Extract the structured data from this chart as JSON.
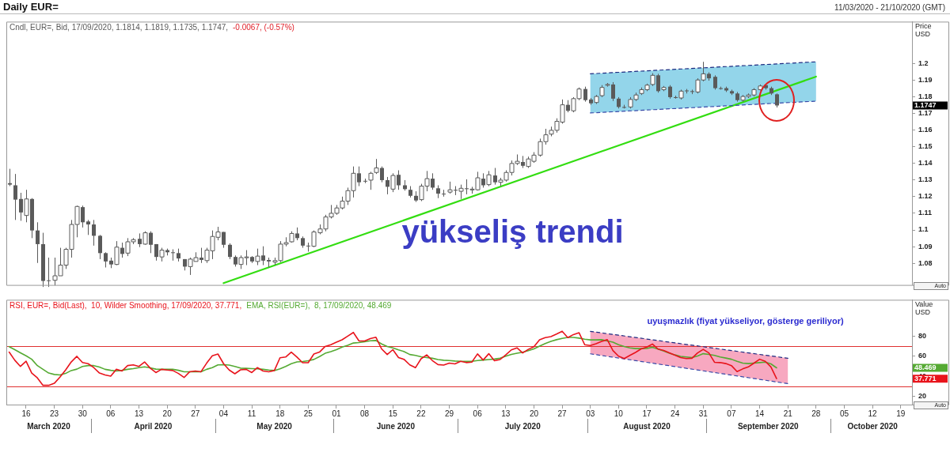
{
  "chart_data": [
    {
      "type": "candlestick",
      "title": "Daily EUR=",
      "subtitle": "11/03/2020 - 21/10/2020 (GMT)",
      "ylabel": "Price USD",
      "categories": [
        null,
        null,
        null,
        "16",
        null,
        null,
        null,
        null,
        "23",
        null,
        null,
        null,
        null,
        "30",
        null,
        null,
        null,
        null,
        "06",
        null,
        null,
        null,
        null,
        "13",
        null,
        null,
        null,
        null,
        "20",
        null,
        null,
        null,
        null,
        "27",
        null,
        null,
        null,
        null,
        "04",
        null,
        null,
        null,
        null,
        "11",
        null,
        null,
        null,
        null,
        "18",
        null,
        null,
        null,
        null,
        "25",
        null,
        null,
        null,
        null,
        "01",
        null,
        null,
        null,
        null,
        "08",
        null,
        null,
        null,
        null,
        "15",
        null,
        null,
        null,
        null,
        "22",
        null,
        null,
        null,
        null,
        "29",
        null,
        null,
        null,
        null,
        "06",
        null,
        null,
        null,
        null,
        "13",
        null,
        null,
        null,
        null,
        "20",
        null,
        null,
        null,
        null,
        "27",
        null,
        null,
        null,
        null,
        "03",
        null,
        null,
        null,
        null,
        "10",
        null,
        null,
        null,
        null,
        "17",
        null,
        null,
        null,
        null,
        "24",
        null,
        null,
        null,
        null,
        "31",
        null,
        null,
        null,
        null,
        "07",
        null,
        null,
        null,
        null,
        "14",
        null,
        null,
        null,
        null,
        "21",
        null,
        null,
        null,
        null,
        "28",
        null,
        null,
        null,
        null,
        "05",
        null,
        null,
        null,
        null,
        "12",
        null,
        null,
        null,
        null,
        "19",
        null,
        null
      ],
      "ylim": [
        1.067,
        1.225
      ],
      "yticks": [
        1.08,
        1.09,
        1.1,
        1.11,
        1.12,
        1.13,
        1.14,
        1.15,
        1.16,
        1.17,
        1.18,
        1.19,
        1.2
      ],
      "tick_labels": "y",
      "legend": "top left",
      "marker": "none",
      "grid": false,
      "series": [
        {
          "name": "Cndl, EUR=, Bid, 17/09/2020, 1.1814, 1.1819, 1.1735, 1.1747,",
          "color": "#5a5a5a",
          "colors": [
            "#5a5a5a",
            "#5a5a5a",
            "#5a5a5a",
            "#ffffff",
            "#5a5a5a",
            "#5a5a5a",
            "#5a5a5a",
            "#5a5a5a",
            "#ffffff",
            "#ffffff",
            "#ffffff",
            "#ffffff",
            "#ffffff",
            "#5a5a5a",
            "#5a5a5a",
            "#5a5a5a",
            "#5a5a5a",
            "#5a5a5a",
            "#5a5a5a",
            "#ffffff",
            "#5a5a5a",
            "#ffffff",
            "#ffffff",
            "#5a5a5a",
            "#ffffff",
            "#5a5a5a",
            "#5a5a5a",
            "#ffffff",
            "#5a5a5a",
            "#5a5a5a",
            "#5a5a5a",
            "#5a5a5a",
            "#ffffff",
            "#ffffff",
            "#5a5a5a",
            "#ffffff",
            "#ffffff",
            "#ffffff",
            "#5a5a5a",
            "#5a5a5a",
            "#5a5a5a",
            "#ffffff",
            "#ffffff",
            "#5a5a5a",
            "#ffffff",
            "#5a5a5a",
            "#5a5a5a",
            "#ffffff",
            "#ffffff",
            "#ffffff",
            "#ffffff",
            "#5a5a5a",
            "#5a5a5a",
            "#5a5a5a",
            "#ffffff",
            "#ffffff",
            "#ffffff",
            "#ffffff",
            "#ffffff",
            "#ffffff",
            "#ffffff",
            "#ffffff",
            "#5a5a5a",
            "#5a5a5a",
            "#ffffff",
            "#ffffff",
            "#5a5a5a",
            "#5a5a5a",
            "#ffffff",
            "#5a5a5a",
            "#5a5a5a",
            "#5a5a5a",
            "#5a5a5a",
            "#ffffff",
            "#ffffff",
            "#5a5a5a",
            "#5a5a5a",
            "#5a5a5a",
            "#ffffff",
            "#5a5a5a",
            "#ffffff",
            "#5a5a5a",
            "#ffffff",
            "#ffffff",
            "#5a5a5a",
            "#ffffff",
            "#5a5a5a",
            "#ffffff",
            "#ffffff",
            "#ffffff",
            "#ffffff",
            "#5a5a5a",
            "#ffffff",
            "#ffffff",
            "#ffffff",
            "#ffffff",
            "#ffffff",
            "#ffffff",
            "#ffffff",
            "#5a5a5a",
            "#ffffff",
            "#ffffff",
            "#5a5a5a",
            "#5a5a5a",
            "#ffffff",
            "#ffffff",
            "#ffffff",
            "#5a5a5a",
            "#5a5a5a",
            "#5a5a5a",
            "#ffffff",
            "#ffffff",
            "#ffffff",
            "#ffffff",
            "#ffffff",
            "#5a5a5a",
            "#ffffff",
            "#5a5a5a",
            "#5a5a5a",
            "#ffffff",
            "#5a5a5a",
            "#5a5a5a",
            "#ffffff",
            "#ffffff",
            "#5a5a5a",
            "#5a5a5a",
            "#5a5a5a",
            "#5a5a5a",
            "#5a5a5a",
            "#5a5a5a",
            "#ffffff",
            "#ffffff",
            "#ffffff",
            "#ffffff",
            "#5a5a5a",
            "#5a5a5a",
            "#5a5a5a",
            null,
            null,
            null,
            null,
            null,
            null,
            null,
            null,
            null,
            null,
            null,
            null,
            null,
            null,
            null,
            null,
            null,
            null,
            null,
            null,
            null,
            null,
            null,
            null
          ],
          "ohlc": [
            [
              1.1281,
              1.1367,
              1.1263,
              1.1272
            ],
            [
              1.1268,
              1.1336,
              1.106,
              1.1182
            ],
            [
              1.1186,
              1.1223,
              1.1055,
              1.1105
            ],
            [
              1.1087,
              1.1241,
              1.1046,
              1.1186
            ],
            [
              1.1186,
              1.1191,
              1.0951,
              1.0997
            ],
            [
              1.0997,
              1.1046,
              1.0802,
              1.0915
            ],
            [
              1.0915,
              1.0983,
              1.0658,
              1.0694
            ],
            [
              1.0698,
              1.0834,
              1.0658,
              1.0694
            ],
            [
              1.0698,
              1.0834,
              1.0667,
              1.0725
            ],
            [
              1.0725,
              1.0893,
              1.0725,
              1.0789
            ],
            [
              1.0789,
              1.0893,
              1.0766,
              1.0884
            ],
            [
              1.0884,
              1.106,
              1.0834,
              1.1033
            ],
            [
              1.1033,
              1.1146,
              1.0956,
              1.1141
            ],
            [
              1.1137,
              1.1146,
              1.1015,
              1.1046
            ],
            [
              1.1051,
              1.106,
              1.097,
              1.1033
            ],
            [
              1.1033,
              1.106,
              1.0906,
              1.0965
            ],
            [
              1.0965,
              1.097,
              1.0825,
              1.0861
            ],
            [
              1.0861,
              1.0866,
              1.0775,
              1.0811
            ],
            [
              1.0816,
              1.0834,
              1.0771,
              1.0793
            ],
            [
              1.0793,
              1.0933,
              1.0789,
              1.0897
            ],
            [
              1.0893,
              1.0924,
              1.0834,
              1.0856
            ],
            [
              1.0861,
              1.0951,
              1.0843,
              1.0929
            ],
            [
              1.0929,
              1.0951,
              1.0915,
              1.0942
            ],
            [
              1.0947,
              1.0979,
              1.0897,
              1.0915
            ],
            [
              1.0915,
              1.0992,
              1.0911,
              1.0983
            ],
            [
              1.0983,
              1.0992,
              1.0861,
              1.0911
            ],
            [
              1.0915,
              1.0915,
              1.0816,
              1.0838
            ],
            [
              1.0838,
              1.0893,
              1.0811,
              1.0879
            ],
            [
              1.0879,
              1.0888,
              1.0847,
              1.0866
            ],
            [
              1.0866,
              1.0884,
              1.0816,
              1.0861
            ],
            [
              1.0861,
              1.0888,
              1.0811,
              1.0829
            ],
            [
              1.0825,
              1.0825,
              1.0757,
              1.078
            ],
            [
              1.078,
              1.0834,
              1.073,
              1.0825
            ],
            [
              1.0811,
              1.0866,
              1.0811,
              1.0834
            ],
            [
              1.0834,
              1.0893,
              1.0802,
              1.082
            ],
            [
              1.0816,
              1.0893,
              1.0802,
              1.0879
            ],
            [
              1.0875,
              1.0997,
              1.0825,
              1.0961
            ],
            [
              1.0956,
              1.1019,
              1.0938,
              1.0988
            ],
            [
              1.0988,
              1.0988,
              1.0893,
              1.0911
            ],
            [
              1.0911,
              1.092,
              1.0825,
              1.0838
            ],
            [
              1.0838,
              1.0847,
              1.078,
              1.0793
            ],
            [
              1.0793,
              1.0847,
              1.0766,
              1.0834
            ],
            [
              1.0834,
              1.0879,
              1.0789,
              1.0838
            ],
            [
              1.0838,
              1.0843,
              1.0802,
              1.0811
            ],
            [
              1.0811,
              1.0888,
              1.0789,
              1.0843
            ],
            [
              1.0847,
              1.0902,
              1.0789,
              1.0816
            ],
            [
              1.082,
              1.0834,
              1.0775,
              1.0811
            ],
            [
              1.0807,
              1.0834,
              1.0789,
              1.0816
            ],
            [
              1.0816,
              1.0933,
              1.0807,
              1.0915
            ],
            [
              1.0915,
              1.0956,
              1.0902,
              1.0924
            ],
            [
              1.0929,
              1.0992,
              1.0924,
              1.0979
            ],
            [
              1.0979,
              1.1015,
              1.0938,
              1.0951
            ],
            [
              1.0951,
              1.0961,
              1.0893,
              1.0906
            ],
            [
              1.0906,
              1.0924,
              1.087,
              1.0906
            ],
            [
              1.0902,
              1.0997,
              1.0897,
              1.0988
            ],
            [
              1.0983,
              1.1033,
              1.0974,
              1.1006
            ],
            [
              1.1006,
              1.1091,
              1.0992,
              1.1078
            ],
            [
              1.1078,
              1.115,
              1.1069,
              1.11
            ],
            [
              1.11,
              1.115,
              1.1091,
              1.1132
            ],
            [
              1.1132,
              1.12,
              1.1123,
              1.1173
            ],
            [
              1.1173,
              1.1254,
              1.115,
              1.1236
            ],
            [
              1.1236,
              1.1381,
              1.1195,
              1.134
            ],
            [
              1.134,
              1.1381,
              1.1263,
              1.1286
            ],
            [
              1.1295,
              1.1308,
              1.1281,
              1.1295
            ],
            [
              1.1299,
              1.1349,
              1.1241,
              1.134
            ],
            [
              1.1345,
              1.1426,
              1.1336,
              1.1372
            ],
            [
              1.1372,
              1.1381,
              1.1286,
              1.1299
            ],
            [
              1.1299,
              1.1318,
              1.1214,
              1.1259
            ],
            [
              1.1245,
              1.134,
              1.1227,
              1.1327
            ],
            [
              1.1331,
              1.1358,
              1.1241,
              1.1268
            ],
            [
              1.1268,
              1.1299,
              1.1236,
              1.1245
            ],
            [
              1.1241,
              1.1263,
              1.1195,
              1.1205
            ],
            [
              1.1205,
              1.1232,
              1.1168,
              1.1177
            ],
            [
              1.1182,
              1.1277,
              1.1173,
              1.1263
            ],
            [
              1.1263,
              1.1354,
              1.1232,
              1.1308
            ],
            [
              1.1308,
              1.134,
              1.1241,
              1.1254
            ],
            [
              1.125,
              1.1268,
              1.1191,
              1.1218
            ],
            [
              1.1218,
              1.1241,
              1.12,
              1.1218
            ],
            [
              1.1227,
              1.129,
              1.1218,
              1.1241
            ],
            [
              1.1241,
              1.1263,
              1.1209,
              1.1236
            ],
            [
              1.1232,
              1.1272,
              1.1186,
              1.125
            ],
            [
              1.125,
              1.1304,
              1.1214,
              1.1245
            ],
            [
              1.1241,
              1.1259,
              1.1218,
              1.1245
            ],
            [
              1.1241,
              1.1349,
              1.1236,
              1.1313
            ],
            [
              1.1308,
              1.134,
              1.1254,
              1.1268
            ],
            [
              1.1272,
              1.1354,
              1.1263,
              1.1331
            ],
            [
              1.1327,
              1.1372,
              1.1272,
              1.1286
            ],
            [
              1.1286,
              1.1313,
              1.1263,
              1.1299
            ],
            [
              1.1299,
              1.1358,
              1.129,
              1.1345
            ],
            [
              1.1345,
              1.1417,
              1.1327,
              1.1399
            ],
            [
              1.1399,
              1.1453,
              1.139,
              1.1412
            ],
            [
              1.1408,
              1.1444,
              1.1372,
              1.1385
            ],
            [
              1.1381,
              1.144,
              1.1372,
              1.1426
            ],
            [
              1.1412,
              1.1467,
              1.1403,
              1.1449
            ],
            [
              1.1449,
              1.1548,
              1.144,
              1.153
            ],
            [
              1.153,
              1.1607,
              1.1512,
              1.1571
            ],
            [
              1.1575,
              1.162,
              1.1562,
              1.1598
            ],
            [
              1.1598,
              1.167,
              1.1584,
              1.1652
            ],
            [
              1.1647,
              1.1783,
              1.1638,
              1.1751
            ],
            [
              1.1751,
              1.1779,
              1.1706,
              1.1715
            ],
            [
              1.1715,
              1.1797,
              1.1706,
              1.1788
            ],
            [
              1.1788,
              1.1855,
              1.1779,
              1.1846
            ],
            [
              1.1846,
              1.186,
              1.177,
              1.1779
            ],
            [
              1.1783,
              1.1792,
              1.1751,
              1.176
            ],
            [
              1.1765,
              1.181,
              1.1756,
              1.1801
            ],
            [
              1.1806,
              1.1869,
              1.1797,
              1.1855
            ],
            [
              1.1869,
              1.1882,
              1.186,
              1.1873
            ],
            [
              1.1873,
              1.1887,
              1.1774,
              1.1788
            ],
            [
              1.1788,
              1.1797,
              1.1729,
              1.1738
            ],
            [
              1.1738,
              1.1751,
              1.1729,
              1.1738
            ],
            [
              1.1738,
              1.1797,
              1.1729,
              1.1783
            ],
            [
              1.1783,
              1.1824,
              1.1774,
              1.181
            ],
            [
              1.1819,
              1.1855,
              1.181,
              1.1842
            ],
            [
              1.1842,
              1.1878,
              1.1833,
              1.1869
            ],
            [
              1.1873,
              1.1941,
              1.1864,
              1.1928
            ],
            [
              1.1928,
              1.1937,
              1.1824,
              1.1833
            ],
            [
              1.1842,
              1.1864,
              1.1833,
              1.1855
            ],
            [
              1.186,
              1.1869,
              1.1788,
              1.1797
            ],
            [
              1.1797,
              1.1806,
              1.1788,
              1.1792
            ],
            [
              1.1792,
              1.1842,
              1.1783,
              1.1833
            ],
            [
              1.1837,
              1.1846,
              1.1819,
              1.1833
            ],
            [
              1.1833,
              1.1842,
              1.1815,
              1.1828
            ],
            [
              1.1828,
              1.191,
              1.1819,
              1.19
            ],
            [
              1.19,
              1.2009,
              1.1892,
              1.1937
            ],
            [
              1.1937,
              1.1946,
              1.1896,
              1.191
            ],
            [
              1.1919,
              1.1928,
              1.1842,
              1.1851
            ],
            [
              1.1851,
              1.186,
              1.1842,
              1.1846
            ],
            [
              1.1851,
              1.186,
              1.1828,
              1.1837
            ],
            [
              1.1833,
              1.1842,
              1.181,
              1.1819
            ],
            [
              1.1819,
              1.1828,
              1.177,
              1.1779
            ],
            [
              1.1779,
              1.181,
              1.177,
              1.1801
            ],
            [
              1.1801,
              1.1819,
              1.1792,
              1.181
            ],
            [
              1.181,
              1.1851,
              1.1801,
              1.1842
            ],
            [
              1.1842,
              1.1873,
              1.1837,
              1.1864
            ],
            [
              1.1869,
              1.1873,
              1.1842,
              1.1851
            ],
            [
              1.1851,
              1.186,
              1.181,
              1.1819
            ],
            [
              1.1814,
              1.1819,
              1.1735,
              1.1747
            ],
            null,
            null,
            null,
            null,
            null,
            null,
            null,
            null,
            null,
            null,
            null,
            null,
            null,
            null,
            null,
            null,
            null,
            null,
            null,
            null,
            null,
            null,
            null,
            null
          ]
        },
        {
          "type": "line",
          "x": [
            "03",
            "28"
          ],
          "values": [
            1.1937,
            1.2009
          ],
          "color": "#1c2a80",
          "line_style": "dashed"
        },
        {
          "type": "line",
          "x": [
            "03",
            "28"
          ],
          "values": [
            1.1702,
            1.1773
          ],
          "color": "#3a4aa8",
          "line_style": "dashed"
        },
        {
          "type": "line",
          "x": [
            "04",
            "28"
          ],
          "values": [
            1.0681,
            1.192
          ],
          "color": "#33dd11"
        }
      ],
      "annotations": [
        "-0.0067, (-0.57%)",
        "yükseliş trendi",
        "1.1747",
        "Auto"
      ]
    },
    {
      "type": "line",
      "ylabel": "Value USD",
      "categories": [
        null,
        null,
        null,
        "16",
        null,
        null,
        null,
        null,
        "23",
        null,
        null,
        null,
        null,
        "30",
        null,
        null,
        null,
        null,
        "06",
        null,
        null,
        null,
        null,
        "13",
        null,
        null,
        null,
        null,
        "20",
        null,
        null,
        null,
        null,
        "27",
        null,
        null,
        null,
        null,
        "04",
        null,
        null,
        null,
        null,
        "11",
        null,
        null,
        null,
        null,
        "18",
        null,
        null,
        null,
        null,
        "25",
        null,
        null,
        null,
        null,
        "01",
        null,
        null,
        null,
        null,
        "08",
        null,
        null,
        null,
        null,
        "15",
        null,
        null,
        null,
        null,
        "22",
        null,
        null,
        null,
        null,
        "29",
        null,
        null,
        null,
        null,
        "06",
        null,
        null,
        null,
        null,
        "13",
        null,
        null,
        null,
        null,
        "20",
        null,
        null,
        null,
        null,
        "27",
        null,
        null,
        null,
        null,
        "03",
        null,
        null,
        null,
        null,
        "10",
        null,
        null,
        null,
        null,
        "17",
        null,
        null,
        null,
        null,
        "24",
        null,
        null,
        null,
        null,
        "31",
        null,
        null,
        null,
        null,
        "07",
        null,
        null,
        null,
        null,
        "14",
        null,
        null,
        null,
        null,
        "21",
        null,
        null,
        null,
        null,
        "28",
        null,
        null,
        null,
        null,
        "05",
        null,
        null,
        null,
        null,
        "12",
        null,
        null,
        null,
        null,
        "19",
        null,
        null
      ],
      "ylim": [
        12,
        116
      ],
      "yticks": [
        20,
        40,
        60,
        80
      ],
      "legend": "top left",
      "marker": "none",
      "grid": false,
      "series": [
        {
          "name": "RSI, EUR=, Bid(Last),  10, Wilder Smoothing, 17/09/2020, 37.771,",
          "color": "#e8141c",
          "values": [
            64.1,
            56.0,
            49.9,
            55.1,
            43.3,
            38.5,
            31.1,
            31.1,
            33.1,
            39.2,
            46.3,
            54.3,
            59.9,
            53.8,
            52.6,
            48.7,
            43.3,
            41.4,
            40.2,
            47.0,
            45.3,
            50.7,
            51.4,
            49.9,
            54.3,
            48.2,
            43.8,
            47.0,
            46.3,
            45.8,
            42.9,
            38.9,
            44.6,
            45.3,
            44.6,
            53.1,
            60.4,
            62.2,
            52.6,
            46.3,
            42.6,
            46.5,
            47.0,
            43.8,
            48.7,
            45.3,
            44.6,
            45.8,
            58.5,
            59.2,
            64.1,
            59.2,
            53.6,
            53.6,
            62.2,
            64.1,
            69.7,
            71.4,
            73.9,
            76.3,
            80.0,
            83.6,
            75.1,
            75.1,
            77.5,
            78.8,
            67.3,
            61.7,
            66.5,
            58.7,
            56.8,
            51.4,
            48.6,
            57.5,
            61.3,
            55.7,
            51.7,
            51.2,
            53.2,
            52.4,
            54.9,
            53.7,
            54.2,
            62.3,
            56.2,
            62.5,
            55.5,
            56.7,
            61.3,
            66.3,
            68.3,
            63.3,
            66.8,
            69.4,
            76.4,
            78.5,
            79.5,
            82.0,
            84.8,
            78.5,
            81.5,
            83.3,
            71.4,
            70.6,
            72.4,
            74.7,
            76.4,
            65.6,
            60.0,
            57.7,
            60.8,
            63.8,
            67.3,
            69.1,
            72.1,
            67.1,
            65.8,
            63.3,
            61.0,
            58.7,
            57.7,
            58.0,
            63.3,
            66.8,
            63.3,
            54.0,
            53.7,
            52.7,
            50.7,
            44.8,
            47.4,
            49.4,
            53.2,
            57.0,
            54.9,
            49.4,
            37.771,
            null,
            null,
            null,
            null,
            null,
            null,
            null,
            null,
            null,
            null,
            null,
            null,
            null,
            null,
            null,
            null,
            null,
            null,
            null,
            null,
            null,
            null,
            null,
            null
          ]
        },
        {
          "name": "EMA, RSI(EUR=),  8, 17/09/2020, 48.469",
          "color": "#55aa33",
          "values": [
            69.5,
            66.5,
            63.4,
            60.4,
            57.0,
            50.7,
            47.0,
            43.3,
            41.9,
            41.4,
            42.9,
            45.8,
            47.2,
            49.9,
            50.7,
            50.7,
            49.2,
            47.0,
            46.0,
            45.3,
            46.0,
            47.0,
            47.7,
            48.7,
            49.4,
            48.5,
            47.2,
            47.0,
            47.0,
            47.0,
            46.0,
            44.6,
            44.6,
            44.6,
            44.6,
            47.0,
            48.7,
            51.4,
            51.6,
            51.2,
            49.9,
            48.2,
            48.0,
            47.7,
            47.5,
            47.0,
            46.3,
            45.8,
            47.5,
            49.9,
            52.6,
            54.3,
            54.8,
            55.5,
            56.8,
            59.7,
            62.9,
            64.6,
            66.5,
            69.0,
            70.9,
            73.1,
            73.6,
            74.4,
            75.3,
            75.6,
            72.2,
            69.7,
            68.3,
            66.3,
            64.6,
            61.7,
            60.8,
            59.5,
            58.7,
            58.0,
            56.7,
            56.0,
            55.7,
            55.2,
            54.9,
            54.9,
            54.9,
            55.7,
            56.2,
            56.7,
            57.2,
            58.0,
            60.0,
            61.8,
            63.0,
            64.0,
            65.6,
            67.3,
            70.1,
            72.6,
            74.7,
            76.4,
            77.7,
            78.7,
            78.7,
            78.0,
            76.9,
            76.2,
            76.2,
            76.4,
            75.2,
            73.9,
            71.4,
            69.6,
            68.3,
            67.6,
            67.6,
            67.8,
            68.9,
            67.1,
            65.1,
            63.0,
            61.3,
            59.8,
            59.2,
            58.7,
            60.3,
            62.5,
            61.8,
            60.8,
            59.2,
            58.2,
            57.0,
            54.9,
            53.2,
            52.7,
            53.2,
            53.7,
            54.2,
            52.4,
            48.469,
            null,
            null,
            null,
            null,
            null,
            null,
            null,
            null,
            null,
            null,
            null,
            null,
            null,
            null,
            null,
            null,
            null,
            null,
            null,
            null,
            null,
            null,
            null,
            null
          ]
        },
        {
          "type": "line",
          "x": [
            "03",
            "21"
          ],
          "values": [
            84.7,
            58.0
          ],
          "color": "#1c2a80",
          "line_style": "dashed"
        },
        {
          "type": "line",
          "x": [
            "03",
            "21"
          ],
          "values": [
            62.4,
            32.8
          ],
          "color": "#3a4aa8",
          "line_style": "dashed"
        }
      ],
      "ref_lines": [
        {
          "axis": "y",
          "value": 70,
          "color": "#e03030"
        },
        {
          "axis": "y",
          "value": 30,
          "color": "#e03030"
        }
      ],
      "annotations": [
        "uyuşmazlık (fiyat yükseliyor, gösterge geriliyor)",
        "48.469",
        "37.771",
        "March 2020",
        "April 2020",
        "May 2020",
        "June 2020",
        "July 2020",
        "August 2020",
        "September 2020",
        "October 2020",
        "Auto"
      ]
    }
  ]
}
